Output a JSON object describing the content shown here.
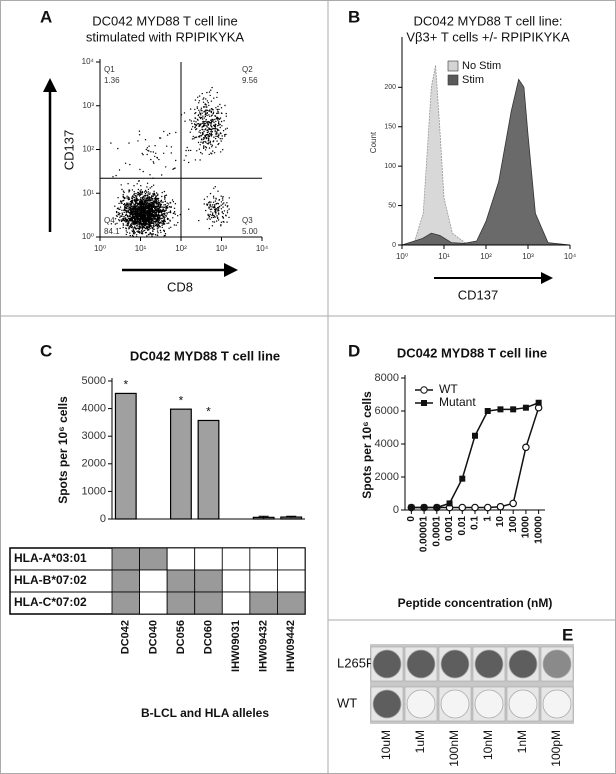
{
  "chart_data": [
    {
      "label": "A",
      "type": "flow-scatter",
      "title": [
        "DC042 MYD88 T cell line",
        "stimulated with RPIPIKYKA"
      ],
      "x_label": "CD8",
      "y_label": "CD137",
      "log_x": true,
      "log_y": true,
      "xlim": [
        1,
        10000
      ],
      "ylim": [
        1,
        10000
      ],
      "xticks": [
        {
          "value": 1,
          "label": "10⁰"
        },
        {
          "value": 10,
          "label": "10¹"
        },
        {
          "value": 100,
          "label": "10²"
        },
        {
          "value": 1000,
          "label": "10³"
        },
        {
          "value": 10000,
          "label": "10⁴"
        }
      ],
      "yticks": [
        {
          "value": 1,
          "label": "10⁰"
        },
        {
          "value": 10,
          "label": "10¹"
        },
        {
          "value": 100,
          "label": "10²"
        },
        {
          "value": 1000,
          "label": "10³"
        },
        {
          "value": 10000,
          "label": "10⁴"
        }
      ],
      "gates": {
        "x": 100,
        "y": 22
      },
      "quadrants": {
        "names": [
          "Q1",
          "Q2",
          "Q3",
          "Q4"
        ],
        "values": [
          1.36,
          9.56,
          5,
          84.1
        ],
        "value_labels": [
          "1.36",
          "9.56",
          "5.00",
          "84.1"
        ]
      }
    },
    {
      "label": "B",
      "type": "histogram-overlay",
      "title": [
        "DC042 MYD88 T cell line:",
        "Vβ3+ T cells +/- RPIPIKYKA"
      ],
      "x_label": "CD137",
      "y_label": "Count",
      "log_x": true,
      "xlim": [
        1,
        10000
      ],
      "ylim": [
        0,
        260
      ],
      "xticks": [
        {
          "value": 1,
          "label": "10⁰"
        },
        {
          "value": 10,
          "label": "10¹"
        },
        {
          "value": 100,
          "label": "10²"
        },
        {
          "value": 1000,
          "label": "10³"
        },
        {
          "value": 10000,
          "label": "10⁴"
        }
      ],
      "yticks": [
        0,
        50,
        100,
        150,
        200
      ],
      "legend": "upper-left",
      "series": [
        {
          "name": "No Stim",
          "color": "#d4d4d4",
          "x": [
            1,
            2,
            3.2,
            4,
            5,
            6.3,
            7.9,
            10,
            15.8,
            31.6,
            100,
            10000
          ],
          "values": [
            0,
            5,
            40,
            120,
            200,
            228,
            150,
            60,
            15,
            3,
            0,
            0
          ]
        },
        {
          "name": "Stim",
          "color": "#5a5a5a",
          "x": [
            1,
            3,
            5,
            8,
            15,
            30,
            60,
            100,
            200,
            400,
            600,
            800,
            1000,
            1500,
            3000,
            10000
          ],
          "values": [
            0,
            8,
            15,
            12,
            3,
            2,
            5,
            30,
            80,
            170,
            210,
            200,
            140,
            40,
            3,
            0
          ]
        }
      ]
    },
    {
      "label": "C",
      "type": "bar-table",
      "title": [
        "DC042 MYD88 T cell line"
      ],
      "y_label": "Spots per 10⁶ cells",
      "x_label": "B-LCL and HLA alleles",
      "categories": [
        "DC042",
        "DC040",
        "DC056",
        "DC060",
        "IHW09031",
        "IHW09432",
        "IHW09442"
      ],
      "values": [
        4550,
        0,
        3980,
        3570,
        0,
        60,
        70
      ],
      "errors": [
        null,
        null,
        null,
        null,
        null,
        40,
        30
      ],
      "annotations": [
        "*",
        null,
        "*",
        "*",
        null,
        null,
        null
      ],
      "color": "#a0a0a0",
      "ylim": [
        0,
        5000
      ],
      "yticks": [
        0,
        1000,
        2000,
        3000,
        4000,
        5000
      ],
      "table": {
        "rows": [
          "HLA-A*03:01",
          "HLA-B*07:02",
          "HLA-C*07:02"
        ],
        "matrix": [
          [
            1,
            1,
            0,
            0,
            0,
            0,
            0
          ],
          [
            1,
            0,
            1,
            1,
            0,
            0,
            0
          ],
          [
            1,
            0,
            1,
            1,
            0,
            1,
            1
          ]
        ]
      }
    },
    {
      "label": "D",
      "type": "line",
      "title": [
        "DC042 MYD88 T cell line"
      ],
      "y_label": "Spots per 10⁶ cells",
      "x_label": "Peptide concentration (nM)",
      "categories": [
        "0",
        "0.00001",
        "0.0001",
        "0.001",
        "0.01",
        "0.1",
        "1",
        "10",
        "100",
        "1000",
        "10000"
      ],
      "ylim": [
        0,
        8000
      ],
      "yticks": [
        0,
        2000,
        4000,
        6000,
        8000
      ],
      "legend": "upper-left",
      "series": [
        {
          "name": "WT",
          "color": "#111111",
          "marker": "open-circle",
          "values": [
            150,
            150,
            150,
            150,
            150,
            150,
            150,
            200,
            400,
            3800,
            6200
          ]
        },
        {
          "name": "Mutant",
          "color": "#111111",
          "marker": "filled-square",
          "values": [
            150,
            150,
            150,
            400,
            1900,
            4500,
            6000,
            6100,
            6100,
            6200,
            6500
          ]
        }
      ]
    }
  ],
  "elispot": {
    "label": "E",
    "rows": [
      "L265P",
      "WT"
    ],
    "columns": [
      "10uM",
      "1uM",
      "100nM",
      "10nM",
      "1nM",
      "100pM"
    ]
  }
}
